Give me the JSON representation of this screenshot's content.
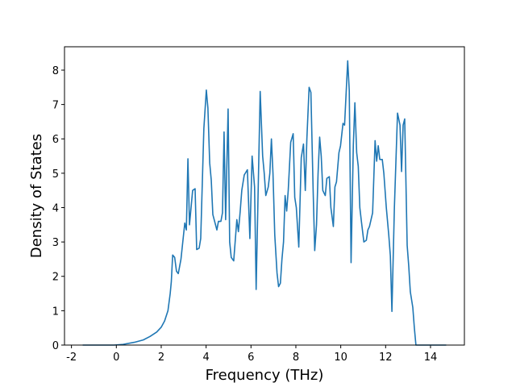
{
  "chart_data": {
    "type": "line",
    "x_label": "Frequency (THz)",
    "y_label": "Density of States",
    "xlim": [
      -2.31,
      15.51
    ],
    "ylim": [
      0,
      8.68
    ],
    "xticks": [
      -2,
      0,
      2,
      4,
      6,
      8,
      10,
      12,
      14
    ],
    "yticks": [
      0,
      1,
      2,
      3,
      4,
      5,
      6,
      7,
      8
    ],
    "series": [
      {
        "color": "#1f77b4",
        "x": [
          -1.5,
          -0.1,
          0.3,
          0.8,
          1.2,
          1.5,
          1.8,
          2.0,
          2.15,
          2.3,
          2.4,
          2.45,
          2.51,
          2.6,
          2.68,
          2.76,
          2.88,
          3.05,
          3.12,
          3.19,
          3.26,
          3.4,
          3.51,
          3.58,
          3.69,
          3.76,
          3.9,
          4.01,
          4.08,
          4.16,
          4.23,
          4.3,
          4.48,
          4.55,
          4.66,
          4.73,
          4.8,
          4.87,
          4.98,
          5.05,
          5.12,
          5.23,
          5.37,
          5.44,
          5.52,
          5.59,
          5.7,
          5.84,
          5.95,
          6.05,
          6.16,
          6.23,
          6.41,
          6.52,
          6.59,
          6.66,
          6.77,
          6.84,
          6.91,
          6.98,
          7.06,
          7.16,
          7.23,
          7.31,
          7.38,
          7.45,
          7.52,
          7.59,
          7.66,
          7.77,
          7.88,
          7.95,
          8.02,
          8.13,
          8.24,
          8.34,
          8.42,
          8.49,
          8.59,
          8.67,
          8.77,
          8.84,
          8.92,
          8.99,
          9.06,
          9.13,
          9.2,
          9.31,
          9.38,
          9.49,
          9.56,
          9.67,
          9.74,
          9.81,
          9.92,
          9.99,
          10.1,
          10.17,
          10.31,
          10.38,
          10.46,
          10.56,
          10.63,
          10.71,
          10.78,
          10.85,
          10.92,
          11.03,
          11.14,
          11.21,
          11.28,
          11.42,
          11.53,
          11.6,
          11.67,
          11.74,
          11.85,
          11.92,
          12.03,
          12.14,
          12.21,
          12.28,
          12.39,
          12.53,
          12.64,
          12.71,
          12.78,
          12.85,
          12.96,
          13.03,
          13.1,
          13.21,
          13.28,
          13.35,
          14.7
        ],
        "values": [
          0,
          0,
          0.02,
          0.08,
          0.15,
          0.25,
          0.38,
          0.52,
          0.7,
          1.0,
          1.5,
          1.85,
          2.62,
          2.55,
          2.15,
          2.08,
          2.5,
          3.55,
          3.35,
          5.42,
          3.5,
          4.5,
          4.55,
          2.78,
          2.82,
          3.1,
          6.3,
          7.42,
          6.9,
          5.3,
          4.8,
          3.8,
          3.35,
          3.6,
          3.6,
          3.85,
          6.2,
          3.65,
          6.87,
          3.0,
          2.55,
          2.45,
          3.65,
          3.3,
          3.9,
          4.5,
          4.95,
          5.1,
          3.1,
          5.5,
          4.6,
          1.62,
          7.38,
          5.5,
          5.0,
          4.35,
          4.6,
          5.0,
          6.0,
          5.0,
          3.2,
          2.1,
          1.7,
          1.8,
          2.5,
          3.0,
          4.35,
          3.9,
          4.5,
          5.9,
          6.15,
          4.3,
          4.0,
          2.85,
          5.45,
          5.85,
          4.5,
          6.0,
          7.5,
          7.35,
          4.5,
          2.75,
          3.5,
          5.0,
          6.05,
          5.5,
          4.5,
          4.35,
          4.85,
          4.9,
          4.0,
          3.45,
          4.6,
          4.75,
          5.6,
          5.8,
          6.45,
          6.4,
          8.27,
          7.4,
          2.4,
          5.8,
          7.05,
          5.6,
          5.2,
          4.0,
          3.6,
          3.0,
          3.05,
          3.35,
          3.45,
          3.85,
          5.95,
          5.35,
          5.8,
          5.4,
          5.4,
          5.0,
          4.0,
          3.2,
          2.6,
          0.98,
          4.0,
          6.75,
          6.4,
          5.05,
          6.4,
          6.58,
          2.9,
          2.3,
          1.55,
          1.1,
          0.5,
          0,
          0
        ]
      }
    ]
  }
}
